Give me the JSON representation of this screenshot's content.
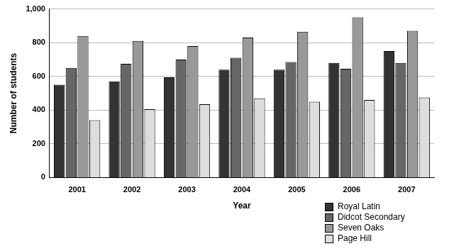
{
  "chart_data": {
    "type": "bar",
    "x_label": "Year",
    "y_label": "Number of students",
    "categories": [
      "2001",
      "2002",
      "2003",
      "2004",
      "2005",
      "2006",
      "2007"
    ],
    "series": [
      {
        "name": "Royal Latin",
        "color": "#333333",
        "values": [
          550,
          570,
          595,
          640,
          640,
          680,
          750
        ]
      },
      {
        "name": "Didcot Secondary",
        "color": "#666666",
        "values": [
          650,
          675,
          700,
          710,
          685,
          645,
          680
        ]
      },
      {
        "name": "Seven Oaks",
        "color": "#999999",
        "values": [
          840,
          810,
          780,
          830,
          865,
          950,
          870
        ]
      },
      {
        "name": "Page Hill",
        "color": "#dddddd",
        "values": [
          340,
          405,
          435,
          470,
          450,
          460,
          475
        ]
      }
    ],
    "ylim": [
      0,
      1000
    ],
    "yticks": [
      0,
      200,
      400,
      600,
      800,
      {
        "value": 1000,
        "label": "1,000"
      }
    ],
    "grid": true,
    "legend": "lower right"
  }
}
